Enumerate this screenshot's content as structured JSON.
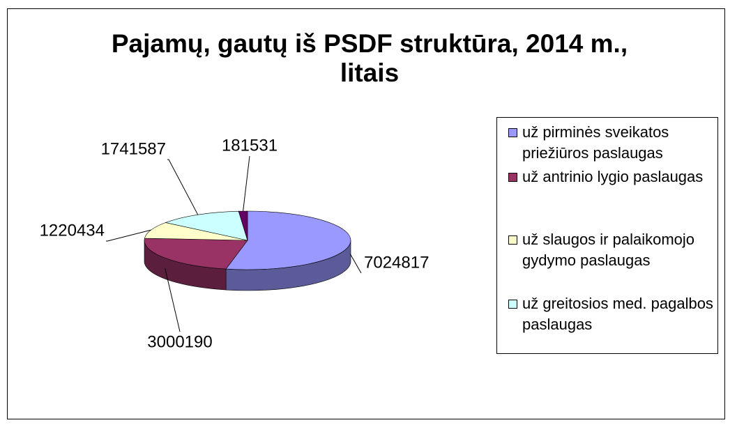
{
  "chart_data": {
    "type": "pie3d",
    "title": "Pajamų, gautų iš PSDF struktūra, 2014 m., litais",
    "categories": [
      "už pirminės sveikatos priežiūros paslaugas",
      "už antrinio lygio paslaugas",
      "už slaugos ir palaikomojo gydymo paslaugas",
      "už greitosios med. pagalbos paslaugas",
      null
    ],
    "values": [
      7024817,
      3000190,
      1220434,
      1741587,
      181531
    ],
    "colors": [
      "#9999ff",
      "#993366",
      "#ffffcc",
      "#ccffff",
      "#660066"
    ]
  }
}
